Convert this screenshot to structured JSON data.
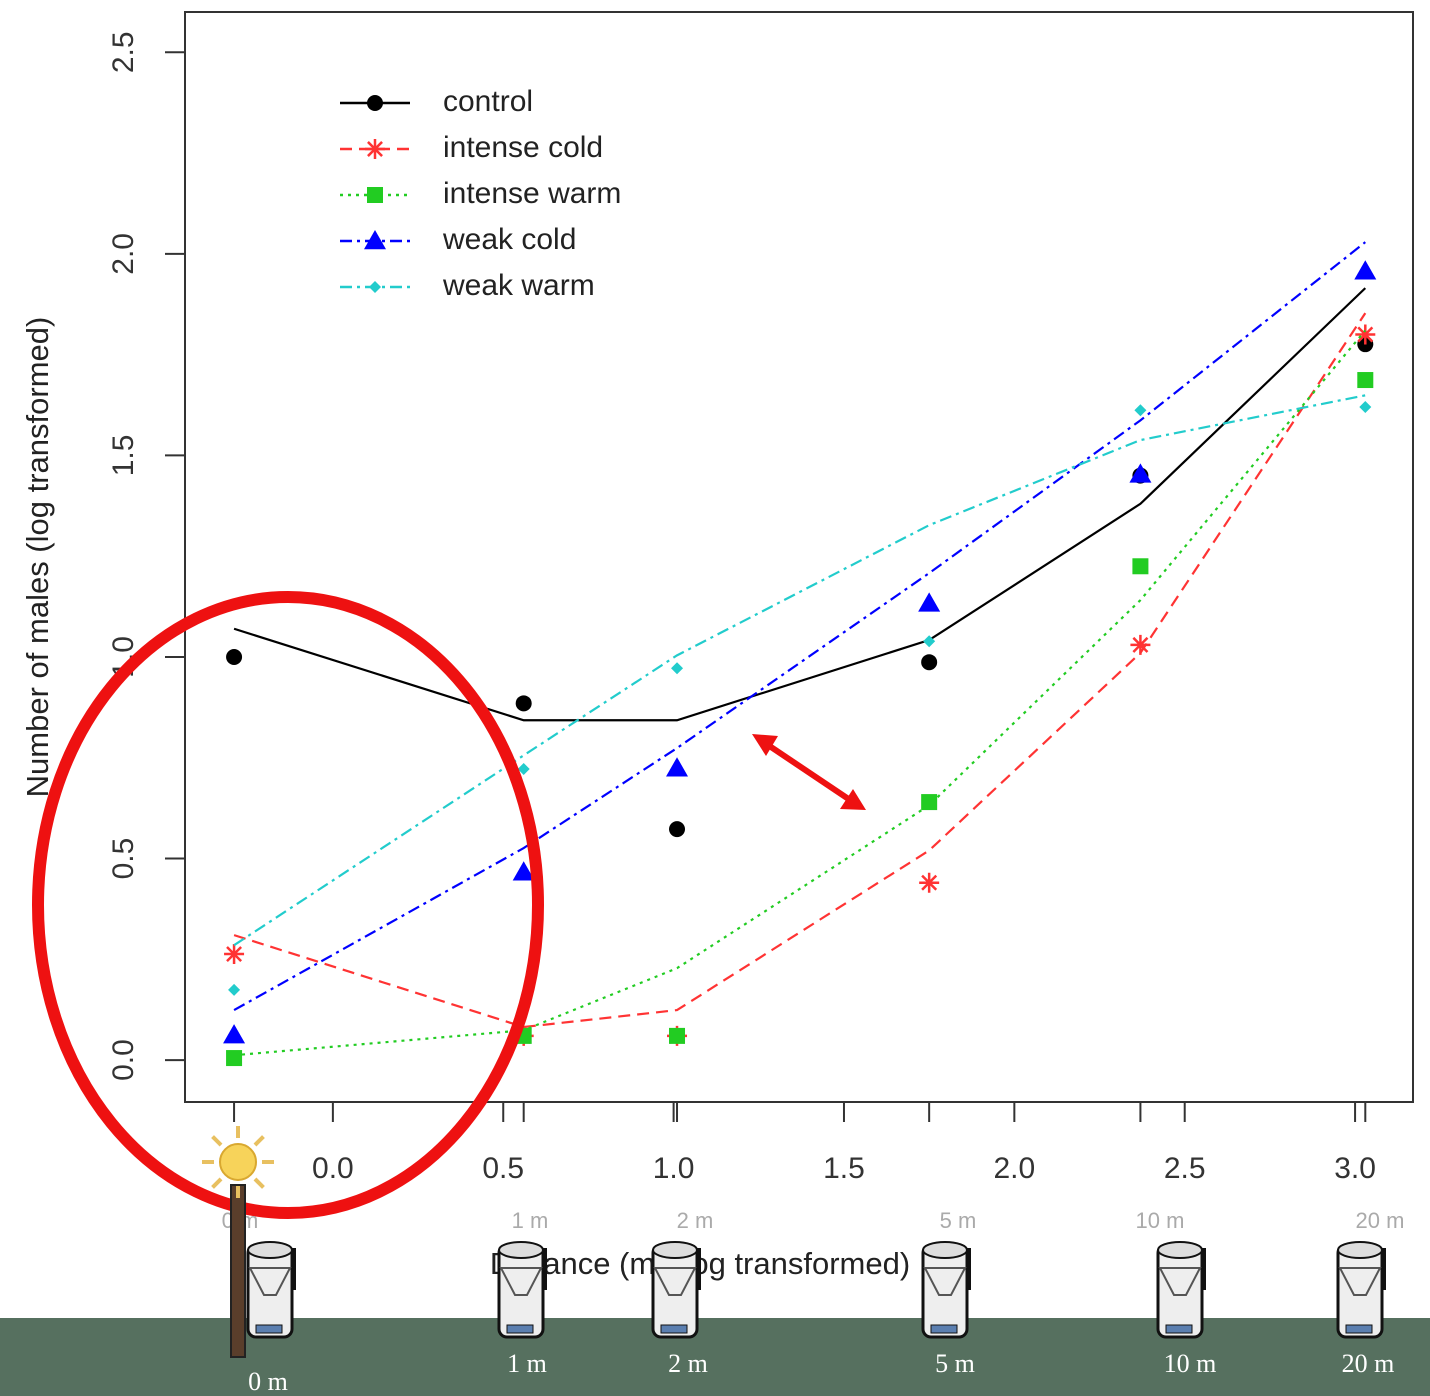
{
  "chart_data": {
    "type": "scatter",
    "xlabel": "Distance (m) (log transformed)",
    "ylabel": "Number of males (log transformed)",
    "x": [
      -0.29,
      0.56,
      1.01,
      1.75,
      2.37,
      3.03
    ],
    "xlim": [
      -0.434,
      3.17
    ],
    "ylim": [
      -0.104,
      2.6
    ],
    "xticks": [
      {
        "value": 0,
        "label": "0.0"
      },
      0.5,
      {
        "value": 1,
        "label": "1.0"
      },
      1.5,
      {
        "value": 2,
        "label": "2.0"
      },
      2.5,
      {
        "value": 3,
        "label": "3.0"
      }
    ],
    "yticks": [
      {
        "value": 0,
        "label": "0.0"
      },
      0.5,
      {
        "value": 1,
        "label": "1.0"
      },
      1.5,
      {
        "value": 2,
        "label": "2.0"
      },
      2.5
    ],
    "legend": "upper left",
    "series": [
      {
        "name": "control",
        "color": "#000000",
        "marker": "circle",
        "dash": "solid",
        "values": [
          1.0,
          0.885,
          0.573,
          0.987,
          1.45,
          1.776
        ],
        "fit": [
          1.07,
          0.843,
          0.843,
          1.042,
          1.38,
          1.915
        ]
      },
      {
        "name": "intense cold",
        "color": "#ff3333",
        "marker": "asterisk",
        "dash": "dashed",
        "values": [
          0.263,
          0.06,
          0.06,
          0.44,
          1.03,
          1.8
        ],
        "fit": [
          0.31,
          0.082,
          0.124,
          0.52,
          1.01,
          1.853
        ]
      },
      {
        "name": "intense warm",
        "color": "#22cc22",
        "marker": "square",
        "dash": "dotted",
        "values": [
          0.005,
          0.06,
          0.06,
          0.64,
          1.225,
          1.687
        ],
        "fit": [
          0.012,
          0.074,
          0.228,
          0.632,
          1.141,
          1.81
        ]
      },
      {
        "name": "weak cold",
        "color": "#0000ff",
        "marker": "triangle",
        "dash": "dashdot",
        "values": [
          0.062,
          0.466,
          0.724,
          1.133,
          1.453,
          1.957
        ],
        "fit": [
          0.124,
          0.526,
          0.774,
          1.208,
          1.587,
          2.029
        ]
      },
      {
        "name": "weak warm",
        "color": "#22cccc",
        "marker": "diamond",
        "dash": "dashdot",
        "values": [
          0.174,
          0.722,
          0.972,
          1.039,
          1.612,
          1.62
        ],
        "fit": [
          0.285,
          0.756,
          1.004,
          1.327,
          1.538,
          1.649
        ]
      }
    ],
    "top_distance_labels": [
      "0 m",
      "1 m",
      "2 m",
      "5 m",
      "10 m",
      "20 m"
    ],
    "bottom_distance_labels": [
      "0 m",
      "1 m",
      "2 m",
      "5 m",
      "10 m",
      "20 m"
    ]
  }
}
